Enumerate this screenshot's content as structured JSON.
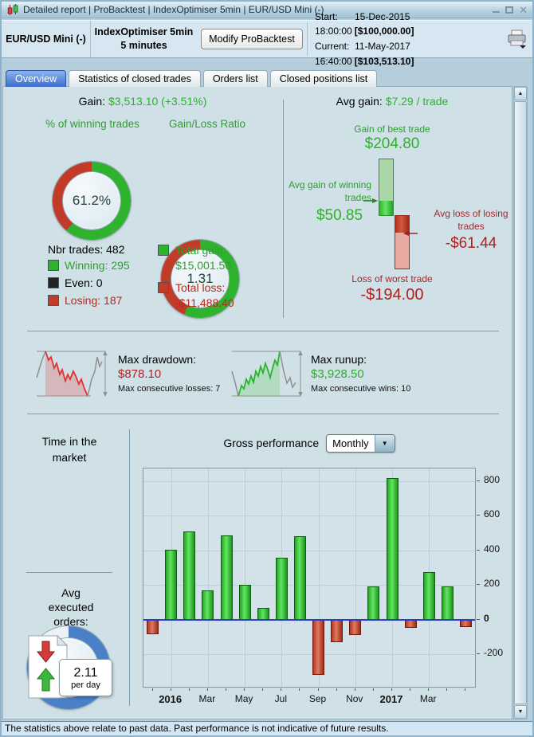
{
  "window": {
    "title": "Detailed report | ProBacktest | IndexOptimiser 5min | EUR/USD Mini (-)"
  },
  "icons": {
    "app_icon": "candlestick-pair",
    "minimize": "—",
    "maximize": "",
    "close": "✕",
    "printer": "printer",
    "dropdown_arrow": "▼",
    "scroll_up": "▲",
    "scroll_down": "▼"
  },
  "header": {
    "instrument": "EUR/USD Mini (-)",
    "strategy": "IndexOptimiser 5min",
    "timeframe": "5 minutes",
    "modify_button": "Modify ProBacktest",
    "start_label": "Start:",
    "start_datetime": "15-Dec-2015 18:00:00",
    "start_amount": "[$100,000.00]",
    "current_label": "Current:",
    "current_datetime": "11-May-2017 16:40:00",
    "current_amount": "[$103,513.10]"
  },
  "tabs": {
    "overview": "Overview",
    "statistics": "Statistics of closed trades",
    "orders": "Orders list",
    "closed_positions": "Closed positions list"
  },
  "overview": {
    "gain": {
      "label": "Gain:",
      "value": "$3,513.10 (+3.51%)"
    },
    "avg_gain": {
      "label": "Avg gain:",
      "value": "$7.29 / trade"
    },
    "winning_gauge": {
      "title": "% of winning trades",
      "value": "61.2%",
      "percent": 61.2,
      "color": "#2eb32e",
      "rest_color": "#c23b28"
    },
    "ratio_gauge": {
      "title": "Gain/Loss Ratio",
      "value": "1.31",
      "percent": 56.7,
      "color": "#2eb32e",
      "rest_color": "#c23b28"
    },
    "nbr_trades": {
      "label": "Nbr trades:",
      "value": "482"
    },
    "legend": [
      {
        "label": "Winning: 295",
        "color": "#2eb32e",
        "text_color": "#2e9e2e"
      },
      {
        "label": "Even: 0",
        "color": "#222222",
        "text_color": "#000000"
      },
      {
        "label": "Losing: 187",
        "color": "#c23b28",
        "text_color": "#b42a1a"
      }
    ],
    "total_gain": {
      "label": "Total gain:",
      "value": "$15,001.50",
      "color": "#2eb32e"
    },
    "total_loss": {
      "label": "Total loss:",
      "value": "-$11,488.40",
      "color": "#c23b28"
    },
    "best_trade": {
      "label": "Gain of best trade",
      "value": "$204.80"
    },
    "avg_win": {
      "label": "Avg gain of winning trades",
      "value": "$50.85"
    },
    "avg_loss": {
      "label": "Avg loss of losing trades",
      "value": "-$61.44"
    },
    "worst_trade": {
      "label": "Loss of worst trade",
      "value": "-$194.00"
    },
    "drawdown": {
      "label": "Max drawdown:",
      "value": "$878.10",
      "sub": "Max consecutive losses: 7"
    },
    "runup": {
      "label": "Max runup:",
      "value": "$3,928.50",
      "sub": "Max consecutive wins: 10"
    },
    "time_gauge": {
      "title": "Time in the market",
      "value": "83.07%",
      "percent": 83.07,
      "color": "#4a80c8",
      "rest_color": "#ecf2f6"
    },
    "avg_orders": {
      "label": "Avg executed orders:",
      "value": "2.11",
      "unit": "per day"
    },
    "gross_performance_label": "Gross performance",
    "period": "Monthly"
  },
  "chart_data": {
    "type": "bar",
    "title": "Gross performance",
    "period_selector": "Monthly",
    "categories": [
      "Dec 2015",
      "Jan 2016",
      "Feb 2016",
      "Mar 2016",
      "Apr 2016",
      "May 2016",
      "Jun 2016",
      "Jul 2016",
      "Aug 2016",
      "Sep 2016",
      "Oct 2016",
      "Nov 2016",
      "Dec 2016",
      "Jan 2017",
      "Feb 2017",
      "Mar 2017",
      "Apr 2017",
      "May 2017"
    ],
    "values": [
      -80,
      405,
      510,
      170,
      485,
      200,
      65,
      355,
      480,
      -315,
      -125,
      -85,
      190,
      820,
      -45,
      275,
      190,
      -40
    ],
    "pos_color": "#33cc33",
    "neg_color": "#cc4433",
    "y_ticks": [
      800,
      600,
      400,
      200,
      0,
      -200
    ],
    "ylim": [
      -390,
      870
    ],
    "x_axis_labels": [
      {
        "index": 1,
        "text": "2016",
        "bold": true
      },
      {
        "index": 3,
        "text": "Mar"
      },
      {
        "index": 5,
        "text": "May"
      },
      {
        "index": 7,
        "text": "Jul"
      },
      {
        "index": 9,
        "text": "Sep"
      },
      {
        "index": 11,
        "text": "Nov"
      },
      {
        "index": 13,
        "text": "2017",
        "bold": true
      },
      {
        "index": 15,
        "text": "Mar"
      }
    ],
    "zero_line_color": "#2a3bd0",
    "grid": true,
    "legend_position": "none"
  },
  "status_bar": "The statistics above relate to past data. Past performance is not indicative of future results."
}
